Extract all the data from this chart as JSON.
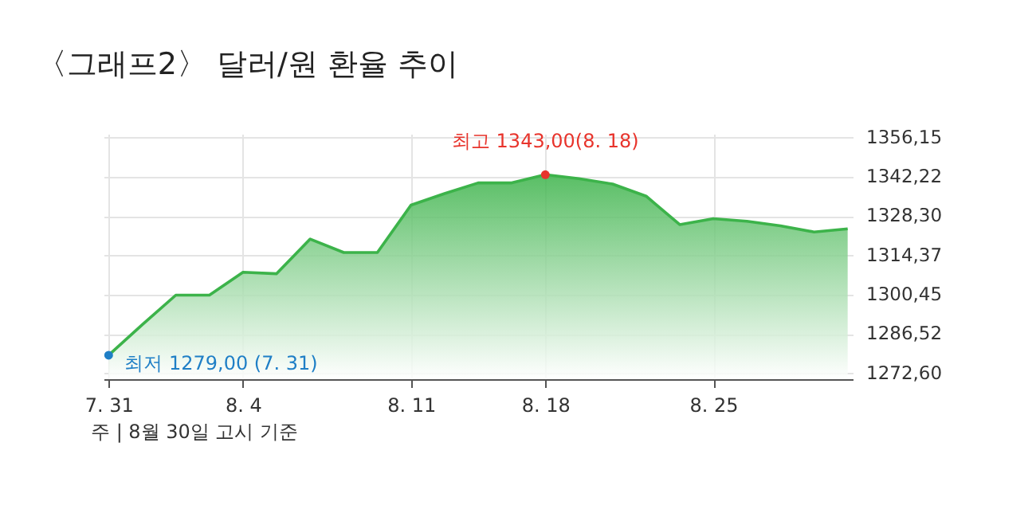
{
  "chart_data": {
    "type": "area",
    "title": "〈그래프2〉 달러/원 환율 추이",
    "categories": [
      "7. 31",
      null,
      null,
      null,
      "8. 4",
      null,
      null,
      null,
      null,
      "8. 11",
      null,
      null,
      null,
      "8. 18",
      null,
      null,
      null,
      null,
      "8. 25",
      null,
      null,
      null,
      null
    ],
    "series": [
      {
        "color": "#3cb34a",
        "values": [
          1279,
          1289.8,
          1300.3,
          1300.3,
          1308.4,
          1307.9,
          1320.2,
          1315.4,
          1315.4,
          1332.2,
          1336.3,
          1340.1,
          1340.1,
          1343,
          1341.6,
          1339.7,
          1335.4,
          1325.3,
          1327.4,
          1326.5,
          1324.9,
          1322.7,
          1323.8
        ]
      }
    ],
    "ylim": [
      1270.5,
      1357.5
    ],
    "yticks": [
      {
        "value": 1272.6,
        "label": "1272,60"
      },
      {
        "value": 1286.52,
        "label": "1286,52"
      },
      {
        "value": 1300.45,
        "label": "1300,45"
      },
      {
        "value": 1314.37,
        "label": "1314,37"
      },
      {
        "value": 1328.3,
        "label": "1328,30"
      },
      {
        "value": 1342.22,
        "label": "1342,22"
      },
      {
        "value": 1356.15,
        "label": "1356,15"
      }
    ],
    "grid": true,
    "annotations": [
      {
        "text": "최고 1343,00(8. 18)",
        "x": "8. 18",
        "y": 1343
      },
      {
        "text": "최저 1279,00 (7. 31)",
        "x": "7. 31",
        "y": 1279
      },
      "주 | 8월 30일 고시 기준"
    ]
  }
}
